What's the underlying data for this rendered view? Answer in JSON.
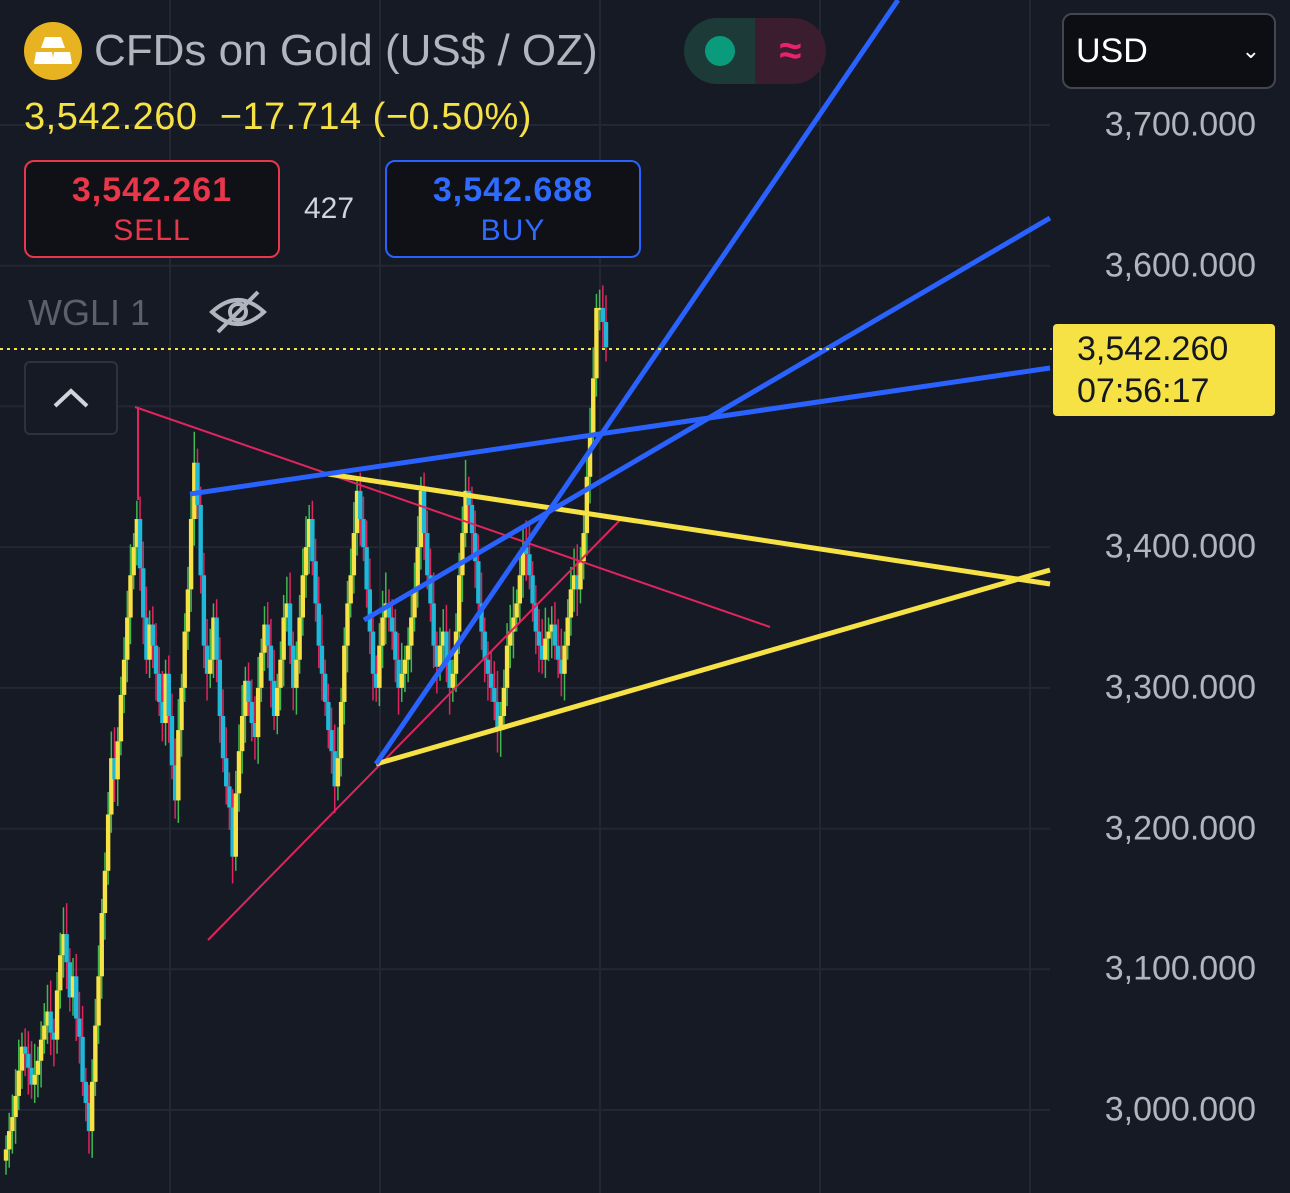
{
  "header": {
    "title": "CFDs on Gold (US$ / OZ)",
    "last_price": "3,542.260",
    "change": "−17.714",
    "change_pct": "(−0.50%)"
  },
  "trade": {
    "sell_price": "3,542.261",
    "sell_label": "SELL",
    "buy_price": "3,542.688",
    "buy_label": "BUY",
    "spread": "427"
  },
  "indicator": {
    "label": "WGLI 1"
  },
  "status": {
    "market_icon": "green-dot-icon",
    "delay_icon": "wave-icon"
  },
  "currency": {
    "value": "USD"
  },
  "last_tag": {
    "price": "3,542.260",
    "countdown": "07:56:17"
  },
  "colors": {
    "background": "#161a25",
    "up_candle": "#f6e244",
    "down_candle": "#1fb8d8",
    "blue_lines": "#2962ff",
    "yellow_lines": "#f6e244",
    "red_lines": "#e0245e",
    "sell": "#e8364a",
    "buy": "#2962ff"
  },
  "chart_data": {
    "type": "candlestick",
    "symbol": "CFDs on Gold (US$ / OZ)",
    "y_axis_ticks": [
      3700,
      3600,
      3400,
      3300,
      3200,
      3100,
      3000
    ],
    "y_axis_tick_labels": [
      "3,700.000",
      "3,600.000",
      "3,400.000",
      "3,300.000",
      "3,200.000",
      "3,100.000",
      "3,000.000"
    ],
    "ylim": [
      2940,
      3820
    ],
    "last_price": 3542.26,
    "grid": true,
    "closes": [
      2972,
      2985,
      2995,
      3010,
      3028,
      3045,
      3040,
      3030,
      3018,
      3025,
      3035,
      3050,
      3060,
      3070,
      3055,
      3050,
      3085,
      3110,
      3125,
      3105,
      3080,
      3095,
      3065,
      3052,
      3020,
      3005,
      2985,
      3020,
      3060,
      3095,
      3140,
      3170,
      3210,
      3250,
      3235,
      3262,
      3295,
      3320,
      3350,
      3380,
      3400,
      3420,
      3385,
      3350,
      3320,
      3345,
      3330,
      3310,
      3290,
      3275,
      3310,
      3280,
      3245,
      3220,
      3270,
      3300,
      3340,
      3370,
      3420,
      3460,
      3430,
      3380,
      3330,
      3310,
      3320,
      3350,
      3320,
      3280,
      3250,
      3230,
      3215,
      3180,
      3225,
      3255,
      3280,
      3305,
      3290,
      3275,
      3265,
      3300,
      3325,
      3345,
      3330,
      3305,
      3280,
      3300,
      3320,
      3350,
      3360,
      3330,
      3300,
      3320,
      3350,
      3380,
      3400,
      3420,
      3390,
      3360,
      3330,
      3310,
      3290,
      3270,
      3255,
      3230,
      3250,
      3290,
      3330,
      3360,
      3380,
      3410,
      3440,
      3420,
      3400,
      3370,
      3340,
      3310,
      3300,
      3330,
      3350,
      3360,
      3350,
      3340,
      3320,
      3300,
      3310,
      3320,
      3330,
      3350,
      3370,
      3400,
      3440,
      3410,
      3380,
      3360,
      3330,
      3315,
      3330,
      3340,
      3320,
      3300,
      3310,
      3340,
      3380,
      3410,
      3440,
      3430,
      3410,
      3390,
      3360,
      3340,
      3320,
      3310,
      3300,
      3290,
      3270,
      3280,
      3300,
      3330,
      3340,
      3350,
      3360,
      3380,
      3400,
      3395,
      3380,
      3360,
      3340,
      3330,
      3320,
      3335,
      3340,
      3345,
      3330,
      3320,
      3310,
      3330,
      3350,
      3370,
      3380,
      3370,
      3390,
      3410,
      3450,
      3480,
      3520,
      3570,
      3570,
      3560,
      3542
    ]
  }
}
